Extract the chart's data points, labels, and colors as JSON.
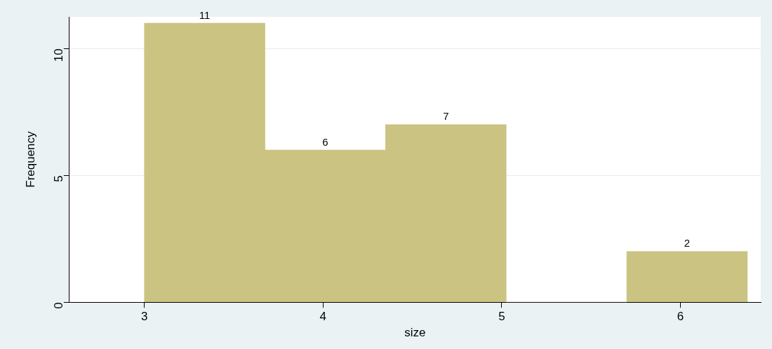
{
  "chart_data": {
    "type": "histogram",
    "xlabel": "size",
    "ylabel": "Frequency",
    "bins": [
      3,
      3.675,
      4.35,
      5.025,
      5.7,
      6.375
    ],
    "values": [
      11,
      6,
      7,
      0,
      2
    ],
    "value_labels": [
      "11",
      "6",
      "7",
      null,
      "2"
    ],
    "color": "#cbc382",
    "xlim": [
      2.58,
      6.45
    ],
    "ylim": [
      0,
      11.25
    ],
    "xticks": [
      3,
      4,
      5,
      6
    ],
    "yticks": [
      0,
      5,
      10
    ],
    "grid": "y",
    "legend": false
  }
}
